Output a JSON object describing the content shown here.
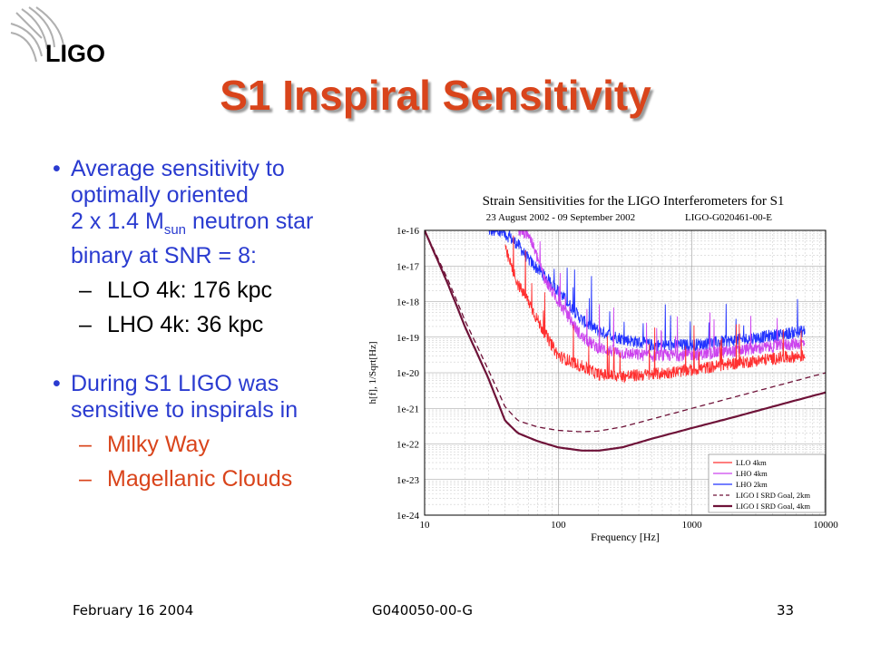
{
  "logo": {
    "text": "LIGO",
    "icon": "ligo-waves-logo"
  },
  "title": "S1 Inspiral Sensitivity",
  "bullets": {
    "b1_line1": "Average sensitivity to",
    "b1_line2": "optimally oriented",
    "b1_line3_pre": "2 x 1.4 M",
    "b1_line3_sub": "sun",
    "b1_line3_post": " neutron star",
    "b1_line4": "binary at SNR = 8:",
    "b1_subs": [
      "LLO 4k: 176 kpc",
      "LHO 4k: 36 kpc"
    ],
    "b2_line1": "During S1 LIGO was",
    "b2_line2": "sensitive to inspirals in",
    "b2_subs": [
      "Milky Way",
      "Magellanic Clouds"
    ],
    "bullet_char": "•",
    "dash_char": "–"
  },
  "footer": {
    "date": "February 16 2004",
    "doc": "G040050-00-G",
    "page": "33"
  },
  "colors": {
    "title": "#d9441b",
    "text": "#2a3bd0",
    "llo": "#ff3030",
    "lho4": "#cc44ee",
    "lho2": "#2233ff",
    "srd": "#6e1238"
  },
  "chart_data": {
    "type": "line",
    "title": "Strain Sensitivities for the LIGO Interferometers for S1",
    "subtitle_left": "23 August 2002 - 09 September 2002",
    "subtitle_right": "LIGO-G020461-00-E",
    "xlabel": "Frequency [Hz]",
    "ylabel": "h[f], 1/Sqrt[Hz]",
    "x_scale": "log",
    "y_scale": "log",
    "xlim": [
      10,
      10000
    ],
    "ylim": [
      1e-24,
      1e-16
    ],
    "x_ticks": [
      "10",
      "100",
      "1000",
      "10000"
    ],
    "y_ticks": [
      "1e-16",
      "1e-17",
      "1e-18",
      "1e-19",
      "1e-20",
      "1e-21",
      "1e-22",
      "1e-23",
      "1e-24"
    ],
    "grid": true,
    "legend_position": "bottom-right",
    "series": [
      {
        "name": "LLO 4km",
        "color": "#ff3030",
        "style": "noisy",
        "x": [
          40,
          50,
          60,
          70,
          80,
          100,
          150,
          200,
          300,
          500,
          1000,
          2000,
          4000,
          7000
        ],
        "y": [
          3e-17,
          3e-18,
          1e-18,
          3e-19,
          1.2e-19,
          3e-20,
          1.5e-20,
          9e-21,
          8e-21,
          9e-21,
          1.2e-20,
          1.8e-20,
          2.5e-20,
          3e-20
        ]
      },
      {
        "name": "LHO 4km",
        "color": "#cc44ee",
        "style": "noisy",
        "x": [
          50,
          60,
          80,
          100,
          150,
          200,
          300,
          500,
          1000,
          2000,
          4000,
          7000
        ],
        "y": [
          1e-16,
          8e-17,
          4e-18,
          1e-18,
          1e-19,
          5e-20,
          3.5e-20,
          3e-20,
          3.2e-20,
          4e-20,
          5.5e-20,
          7e-20
        ]
      },
      {
        "name": "LHO 2km",
        "color": "#2233ff",
        "style": "noisy",
        "x": [
          30,
          40,
          50,
          60,
          80,
          100,
          150,
          200,
          300,
          500,
          1000,
          2000,
          4000,
          7000
        ],
        "y": [
          1e-16,
          8e-17,
          4e-17,
          1.5e-17,
          5e-18,
          2e-18,
          3e-19,
          1.5e-19,
          9e-20,
          6e-20,
          6e-20,
          8e-20,
          1.1e-19,
          1.5e-19
        ]
      },
      {
        "name": "LIGO I SRD Goal, 2km",
        "color": "#6e1238",
        "style": "dashed",
        "x": [
          10,
          15,
          20,
          30,
          40,
          50,
          70,
          100,
          150,
          200,
          300,
          500,
          1000,
          2000,
          5000,
          10000
        ],
        "y": [
          1e-16,
          4e-18,
          3e-19,
          1.2e-20,
          1.1e-21,
          4.5e-22,
          3e-22,
          2.4e-22,
          2.2e-22,
          2.3e-22,
          3e-22,
          5e-22,
          1e-21,
          2e-21,
          5e-21,
          1e-20
        ]
      },
      {
        "name": "LIGO I SRD Goal, 4km",
        "color": "#6e1238",
        "style": "solid",
        "x": [
          10,
          15,
          20,
          30,
          40,
          50,
          70,
          100,
          150,
          200,
          300,
          500,
          1000,
          2000,
          5000,
          10000
        ],
        "y": [
          1e-16,
          3e-18,
          2e-19,
          7e-21,
          4.5e-22,
          2e-22,
          1.2e-22,
          8e-23,
          6.5e-23,
          6.5e-23,
          8e-23,
          1.4e-22,
          2.8e-22,
          5.5e-22,
          1.4e-21,
          2.8e-21
        ]
      }
    ]
  }
}
